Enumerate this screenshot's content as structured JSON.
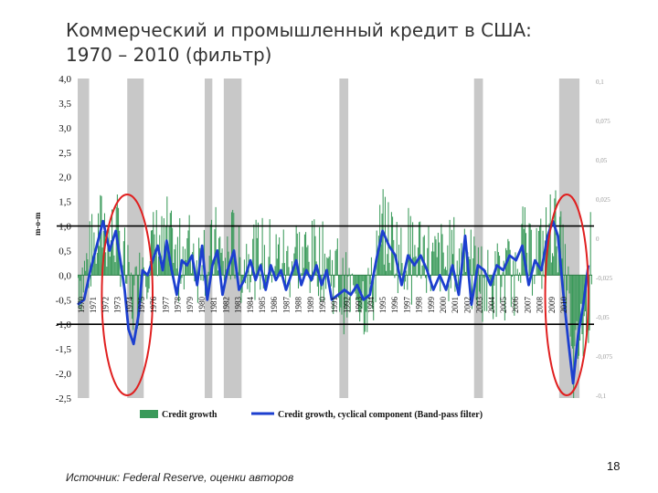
{
  "slide": {
    "title_line1": "Коммерческий и промышленный кредит в США:",
    "title_line2": "1970 – 2010 (фильтр)",
    "source": "Источник: Federal Reserve, оценки авторов",
    "page_number": "18"
  },
  "chart_data": {
    "type": "bar+line",
    "ylabel": "m-o-m",
    "ylim": [
      -2.5,
      4.0
    ],
    "yticks": [
      "4,0",
      "3,5",
      "3,0",
      "2,5",
      "2,0",
      "1,5",
      "1,0",
      "0,5",
      "0,0",
      "-0,5",
      "-1,0",
      "-1,5",
      "-2,0",
      "-2,5"
    ],
    "right_ticks": [
      "0,1",
      "0,075",
      "0,05",
      "0,025",
      "0",
      "-0,025",
      "-0,05",
      "-0,075",
      "-0,1"
    ],
    "x_labels": [
      "1970",
      "1971",
      "1972",
      "1973",
      "1974",
      "1975",
      "1976",
      "1977",
      "1978",
      "1979",
      "1980",
      "1981",
      "1982",
      "1983",
      "1984",
      "1985",
      "1986",
      "1987",
      "1988",
      "1989",
      "1990",
      "1991",
      "1992",
      "1993",
      "1994",
      "1995",
      "1996",
      "1997",
      "1998",
      "1999",
      "2000",
      "2001",
      "2002",
      "2003",
      "2004",
      "2005",
      "2006",
      "2007",
      "2008",
      "2009",
      "2010"
    ],
    "recessions": [
      [
        1970.0,
        1970.9
      ],
      [
        1973.9,
        1975.2
      ],
      [
        1980.0,
        1980.6
      ],
      [
        1981.5,
        1982.9
      ],
      [
        1990.6,
        1991.3
      ],
      [
        2001.2,
        2001.9
      ],
      [
        2007.9,
        2009.5
      ]
    ],
    "reference_lines": [
      1.0,
      -1.0
    ],
    "highlight_periods": [
      [
        1971.9,
        1975.9
      ],
      [
        2006.8,
        2010.2
      ]
    ],
    "legend": {
      "bars": "Credit growth",
      "line": "Credit growth, cyclical component (Band-pass filter)"
    },
    "colors": {
      "bars": "#3a9a5a",
      "line": "#1c3fcf",
      "recession": "#c8c8c8",
      "highlight": "#e02020",
      "reference": "#000000"
    },
    "cyclical": {
      "x": [
        1970.0,
        1970.5,
        1971.0,
        1971.5,
        1972.0,
        1972.5,
        1973.0,
        1973.3,
        1973.7,
        1974.0,
        1974.4,
        1974.8,
        1975.1,
        1975.5,
        1975.9,
        1976.3,
        1976.7,
        1977.0,
        1977.4,
        1977.8,
        1978.2,
        1978.6,
        1979.0,
        1979.4,
        1979.8,
        1980.2,
        1980.6,
        1981.0,
        1981.4,
        1981.8,
        1982.3,
        1982.7,
        1983.1,
        1983.6,
        1984.0,
        1984.4,
        1984.8,
        1985.2,
        1985.6,
        1986.0,
        1986.4,
        1986.8,
        1987.2,
        1987.6,
        1988.0,
        1988.4,
        1988.8,
        1989.2,
        1989.6,
        1990.0,
        1990.5,
        1991.0,
        1991.5,
        1992.0,
        1992.5,
        1993.0,
        1993.5,
        1994.0,
        1994.5,
        1995.0,
        1995.5,
        1996.0,
        1996.5,
        1997.0,
        1997.5,
        1998.0,
        1998.5,
        1999.0,
        1999.5,
        2000.0,
        2000.5,
        2001.0,
        2001.5,
        2002.0,
        2002.5,
        2003.0,
        2003.5,
        2004.0,
        2004.5,
        2005.0,
        2005.5,
        2006.0,
        2006.5,
        2007.0,
        2007.4,
        2007.8,
        2008.2,
        2008.6,
        2009.0,
        2009.4,
        2009.8,
        2010.2
      ],
      "y": [
        -0.6,
        -0.5,
        0.1,
        0.6,
        1.1,
        0.5,
        0.9,
        0.4,
        -0.3,
        -1.1,
        -1.4,
        -0.8,
        0.1,
        0.0,
        0.3,
        0.6,
        0.1,
        0.7,
        0.1,
        -0.4,
        0.3,
        0.2,
        0.4,
        -0.2,
        0.6,
        -0.5,
        0.2,
        0.5,
        -0.4,
        0.1,
        0.5,
        -0.3,
        -0.1,
        0.3,
        -0.1,
        0.2,
        -0.3,
        0.2,
        -0.1,
        0.1,
        -0.3,
        0.0,
        0.3,
        -0.2,
        0.1,
        -0.1,
        0.2,
        -0.2,
        0.1,
        -0.5,
        -0.4,
        -0.3,
        -0.4,
        -0.2,
        -0.5,
        -0.4,
        0.3,
        0.9,
        0.6,
        0.4,
        -0.2,
        0.4,
        0.2,
        0.4,
        0.1,
        -0.3,
        0.0,
        -0.3,
        0.2,
        -0.4,
        0.8,
        -0.6,
        0.2,
        0.1,
        -0.2,
        0.2,
        0.1,
        0.4,
        0.3,
        0.6,
        -0.2,
        0.3,
        0.1,
        0.8,
        1.1,
        0.8,
        -0.3,
        -1.3,
        -2.2,
        -1.2,
        -0.6,
        0.2
      ]
    }
  }
}
